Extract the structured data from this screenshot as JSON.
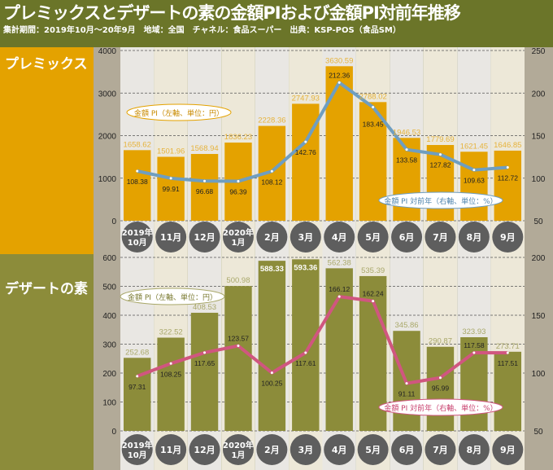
{
  "title": "プレミックスとデザートの素の金額PIおよび金額PI対前年推移",
  "subtitle": "集計期間：2019年10月～20年9月　地域：全国　チャネル：食品スーパー　出典：KSP-POS（食品SM）",
  "colors": {
    "header": "#6b7529",
    "premix_bar": "#e4a200",
    "premix_line": "#6f9ec0",
    "dessert_bar": "#8c8c3a",
    "dessert_line": "#d0567f",
    "axis_strip": "#b2aa98",
    "month_circle": "#5e5e5e"
  },
  "chart_data": [
    {
      "type": "bar+line",
      "panel_label": "プレミックス",
      "categories": [
        [
          "2019年",
          "10月"
        ],
        [
          "11月"
        ],
        [
          "12月"
        ],
        [
          "2020年",
          "1月"
        ],
        [
          "2月"
        ],
        [
          "3月"
        ],
        [
          "4月"
        ],
        [
          "5月"
        ],
        [
          "6月"
        ],
        [
          "7月"
        ],
        [
          "8月"
        ],
        [
          "9月"
        ]
      ],
      "left_axis": {
        "range": [
          0,
          4000
        ],
        "ticks": [
          0,
          1000,
          2000,
          3000,
          4000
        ]
      },
      "right_axis": {
        "range": [
          50,
          250
        ],
        "ticks": [
          50,
          100,
          150,
          200,
          250
        ]
      },
      "series": [
        {
          "name": "金額 PI（左軸、単位：円）",
          "type": "bar",
          "axis": "left",
          "values": [
            1658.62,
            1501.96,
            1568.94,
            1836.23,
            2228.36,
            2747.93,
            3630.59,
            2788.02,
            1946.53,
            1779.69,
            1621.45,
            1646.85
          ]
        },
        {
          "name": "金額 PI 対前年（右軸、単位：%）",
          "type": "line",
          "axis": "right",
          "values": [
            108.38,
            99.91,
            96.68,
            96.39,
            108.12,
            142.76,
            212.36,
            183.45,
            133.58,
            127.82,
            109.63,
            112.72
          ]
        }
      ],
      "grid": true
    },
    {
      "type": "bar+line",
      "panel_label": "デザートの素",
      "categories": [
        [
          "2019年",
          "10月"
        ],
        [
          "11月"
        ],
        [
          "12月"
        ],
        [
          "2020年",
          "1月"
        ],
        [
          "2月"
        ],
        [
          "3月"
        ],
        [
          "4月"
        ],
        [
          "5月"
        ],
        [
          "6月"
        ],
        [
          "7月"
        ],
        [
          "8月"
        ],
        [
          "9月"
        ]
      ],
      "left_axis": {
        "range": [
          0,
          600
        ],
        "ticks": [
          0,
          100,
          200,
          300,
          400,
          500,
          600
        ]
      },
      "right_axis": {
        "range": [
          50,
          200
        ],
        "ticks": [
          50,
          100,
          150,
          200
        ]
      },
      "series": [
        {
          "name": "金額 PI（左軸、単位：円）",
          "type": "bar",
          "axis": "left",
          "values": [
            252.68,
            322.52,
            408.53,
            500.98,
            588.33,
            593.36,
            562.38,
            535.39,
            345.86,
            290.87,
            323.93,
            273.71
          ]
        },
        {
          "name": "金額 PI 対前年（右軸、単位：%）",
          "type": "line",
          "axis": "right",
          "values": [
            97.31,
            108.25,
            117.65,
            123.57,
            100.25,
            117.61,
            166.12,
            162.24,
            91.11,
            95.99,
            117.58,
            117.51
          ]
        }
      ],
      "grid": true
    }
  ]
}
